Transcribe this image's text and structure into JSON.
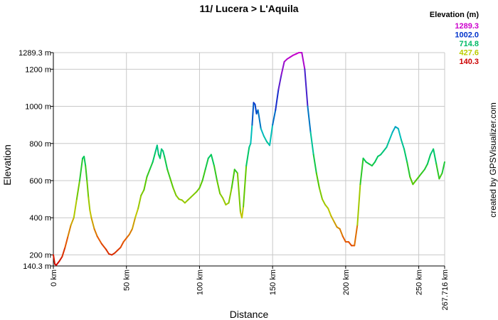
{
  "chart_data": {
    "type": "line",
    "title": "11/ Lucera > L'Aquila",
    "xlabel": "Distance",
    "ylabel": "Elevation",
    "credit": "created by GPSVisualizer.com",
    "xlim": [
      0,
      267.716
    ],
    "ylim": [
      140.3,
      1289.3
    ],
    "x_ticks": [
      {
        "value": 0,
        "label": "0 km"
      },
      {
        "value": 50,
        "label": "50 km"
      },
      {
        "value": 100,
        "label": "100 km"
      },
      {
        "value": 150,
        "label": "150 km"
      },
      {
        "value": 200,
        "label": "200 km"
      },
      {
        "value": 250,
        "label": "250 km"
      },
      {
        "value": 267.716,
        "label": "267.716 km"
      }
    ],
    "y_ticks": [
      {
        "value": 140.3,
        "label": "140.3 m"
      },
      {
        "value": 200,
        "label": "200 m"
      },
      {
        "value": 400,
        "label": "400 m"
      },
      {
        "value": 600,
        "label": "600 m"
      },
      {
        "value": 800,
        "label": "800 m"
      },
      {
        "value": 1000,
        "label": "1000 m"
      },
      {
        "value": 1200,
        "label": "1200 m"
      },
      {
        "value": 1289.3,
        "label": "1289.3 m"
      }
    ],
    "grid": true,
    "legend": {
      "title": "Elevation (m)",
      "position": "top-right",
      "entries": [
        {
          "label": "1289.3",
          "color": "#cc00cc"
        },
        {
          "label": "1002.0",
          "color": "#0033cc"
        },
        {
          "label": "714.8",
          "color": "#00bb66"
        },
        {
          "label": "427.6",
          "color": "#bbcc00"
        },
        {
          "label": "140.3",
          "color": "#cc0000"
        }
      ]
    },
    "series": [
      {
        "x": [
          0,
          1,
          2,
          4,
          6,
          8,
          10,
          12,
          14,
          16,
          18,
          20,
          21,
          22,
          23,
          24,
          25,
          26,
          28,
          30,
          33,
          36,
          38,
          40,
          42,
          44,
          46,
          48,
          50,
          51,
          52,
          54,
          56,
          58,
          60,
          62,
          64,
          66,
          68,
          70,
          71,
          72,
          73,
          74,
          75,
          76,
          78,
          80,
          82,
          84,
          86,
          88,
          90,
          92,
          94,
          96,
          98,
          100,
          102,
          104,
          106,
          108,
          110,
          112,
          114,
          116,
          118,
          120,
          122,
          124,
          126,
          128,
          129,
          130,
          132,
          134,
          135,
          136,
          137,
          138,
          139,
          140,
          142,
          144,
          146,
          148,
          150,
          152,
          154,
          156,
          158,
          160,
          162,
          164,
          166,
          168,
          170,
          172,
          174,
          176,
          178,
          180,
          182,
          184,
          186,
          188,
          190,
          192,
          194,
          196,
          198,
          200,
          202,
          204,
          206,
          208,
          210,
          212,
          214,
          216,
          218,
          220,
          222,
          224,
          226,
          228,
          230,
          232,
          234,
          236,
          238,
          240,
          242,
          244,
          246,
          248,
          250,
          252,
          254,
          256,
          258,
          260,
          262,
          264,
          266,
          267.716
        ],
        "values": [
          200,
          150,
          145,
          165,
          190,
          240,
          300,
          360,
          400,
          500,
          600,
          720,
          730,
          680,
          600,
          510,
          440,
          400,
          340,
          300,
          260,
          230,
          205,
          200,
          210,
          225,
          240,
          270,
          290,
          300,
          310,
          340,
          400,
          450,
          520,
          550,
          620,
          660,
          700,
          760,
          790,
          740,
          720,
          770,
          760,
          730,
          660,
          610,
          560,
          520,
          500,
          495,
          480,
          495,
          510,
          525,
          540,
          560,
          600,
          660,
          720,
          740,
          680,
          600,
          530,
          505,
          470,
          480,
          560,
          660,
          640,
          430,
          400,
          460,
          680,
          780,
          800,
          900,
          1020,
          1010,
          960,
          980,
          880,
          840,
          810,
          790,
          900,
          980,
          1090,
          1170,
          1240,
          1255,
          1265,
          1275,
          1282,
          1289.3,
          1289.3,
          1200,
          1000,
          860,
          740,
          640,
          560,
          500,
          470,
          450,
          410,
          380,
          350,
          340,
          300,
          270,
          270,
          250,
          250,
          360,
          580,
          720,
          700,
          690,
          680,
          700,
          730,
          740,
          760,
          780,
          820,
          860,
          890,
          880,
          820,
          770,
          700,
          620,
          580,
          600,
          620,
          640,
          660,
          690,
          740,
          770,
          690,
          610,
          640,
          700
        ]
      }
    ]
  }
}
